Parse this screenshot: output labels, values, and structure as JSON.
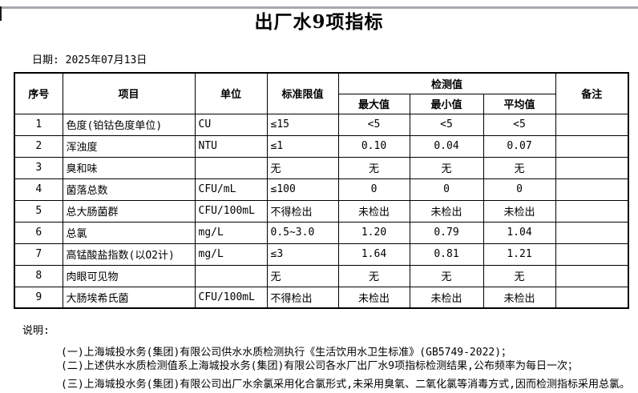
{
  "page": {
    "title": "出厂水9项指标",
    "date_line": "日期: 2025年07月13日"
  },
  "table": {
    "headers": {
      "no": "序号",
      "item": "项目",
      "unit": "单位",
      "limit": "标准限值",
      "detection": "检测值",
      "max": "最大值",
      "min": "最小值",
      "avg": "平均值",
      "remark": "备注"
    },
    "rows": [
      {
        "no": "1",
        "item": "色度(铂钴色度单位)",
        "unit": "CU",
        "limit": "≤15",
        "max": "<5",
        "min": "<5",
        "avg": "<5",
        "remark": ""
      },
      {
        "no": "2",
        "item": "浑浊度",
        "unit": "NTU",
        "limit": "≤1",
        "max": "0.10",
        "min": "0.04",
        "avg": "0.07",
        "remark": ""
      },
      {
        "no": "3",
        "item": "臭和味",
        "unit": "",
        "limit": "无",
        "max": "无",
        "min": "无",
        "avg": "无",
        "remark": ""
      },
      {
        "no": "4",
        "item": "菌落总数",
        "unit": "CFU/mL",
        "limit": "≤100",
        "max": "0",
        "min": "0",
        "avg": "0",
        "remark": ""
      },
      {
        "no": "5",
        "item": "总大肠菌群",
        "unit": "CFU/100mL",
        "limit": "不得检出",
        "max": "未检出",
        "min": "未检出",
        "avg": "未检出",
        "remark": ""
      },
      {
        "no": "6",
        "item": "总氯",
        "unit": "mg/L",
        "limit": "0.5~3.0",
        "max": "1.20",
        "min": "0.79",
        "avg": "1.04",
        "remark": ""
      },
      {
        "no": "7",
        "item": "高锰酸盐指数(以O2计)",
        "unit": "mg/L",
        "limit": "≤3",
        "max": "1.64",
        "min": "0.81",
        "avg": "1.21",
        "remark": ""
      },
      {
        "no": "8",
        "item": "肉眼可见物",
        "unit": "",
        "limit": "无",
        "max": "无",
        "min": "无",
        "avg": "无",
        "remark": ""
      },
      {
        "no": "9",
        "item": "大肠埃希氏菌",
        "unit": "CFU/100mL",
        "limit": "不得检出",
        "max": "未检出",
        "min": "未检出",
        "avg": "未检出",
        "remark": ""
      }
    ]
  },
  "notes": {
    "label": "说明:",
    "items": [
      "(一)上海城投水务(集团)有限公司供水水质检测执行《生活饮用水卫生标准》(GB5749-2022)；",
      "(二)上述供水水质检测值系上海城投水务(集团)有限公司各水厂出厂水9项指标检测结果,公布频率为每日一次；",
      "(三)上海城投水务(集团)有限公司出厂水余氯采用化合氯形式,未采用臭氧、二氧化氯等消毒方式,因而检测指标采用总氯。"
    ]
  }
}
